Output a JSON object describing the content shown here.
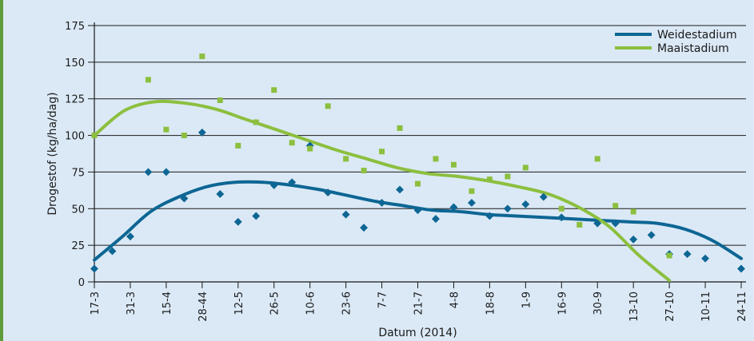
{
  "chart_data": {
    "type": "scatter",
    "xlabel": "Datum (2014)",
    "ylabel": "Drogestof (kg/ha/dag)",
    "ylim": [
      0,
      175
    ],
    "yticks": [
      0,
      25,
      50,
      75,
      100,
      125,
      150,
      175
    ],
    "grid": true,
    "legend_position": "top-right",
    "categories": [
      "17-3",
      "31-3",
      "15-4",
      "28-44",
      "12-5",
      "26-5",
      "10-6",
      "23-6",
      "7-7",
      "21-7",
      "4-8",
      "18-8",
      "1-9",
      "16-9",
      "30-9",
      "13-10",
      "27-10",
      "10-11",
      "24-11"
    ],
    "series": [
      {
        "name": "Weidestadium",
        "color": "#0d6694",
        "marker": "diamond",
        "x": [
          0,
          0.5,
          1,
          1.5,
          2,
          2.5,
          3,
          3.5,
          4,
          4.5,
          5,
          5.5,
          6,
          6.5,
          7,
          7.5,
          8,
          8.5,
          9,
          9.5,
          10,
          10.5,
          11,
          11.5,
          12,
          12.5,
          13,
          13.5,
          14,
          14.5,
          15,
          15.5,
          16,
          16.5,
          17,
          17.5,
          18
        ],
        "values": [
          9,
          21,
          31,
          75,
          75,
          57,
          102,
          60,
          41,
          45,
          66,
          68,
          93,
          61,
          46,
          37,
          54,
          63,
          49,
          43,
          51,
          54,
          45,
          50,
          53,
          58,
          44,
          null,
          40,
          40,
          29,
          32,
          19,
          19,
          16,
          null,
          9
        ],
        "trend": [
          15,
          31,
          48,
          58,
          65,
          68,
          68,
          66,
          63,
          59,
          55,
          52,
          49,
          48,
          46,
          45,
          44,
          43,
          42,
          41,
          40,
          36,
          28,
          16
        ]
      },
      {
        "name": "Maaistadium",
        "color": "#8cbf3f",
        "marker": "square",
        "x": [
          0,
          0.5,
          1,
          1.5,
          2,
          2.5,
          3,
          3.5,
          4,
          4.5,
          5,
          5.5,
          6,
          6.5,
          7,
          7.5,
          8,
          8.5,
          9,
          9.5,
          10,
          10.5,
          11,
          11.5,
          12,
          12.5,
          13,
          13.5,
          14,
          14.5,
          15,
          15.5,
          16
        ],
        "values": [
          100,
          null,
          null,
          138,
          104,
          100,
          154,
          124,
          93,
          109,
          131,
          95,
          91,
          120,
          84,
          76,
          89,
          105,
          67,
          84,
          80,
          62,
          70,
          72,
          78,
          null,
          50,
          39,
          84,
          52,
          48,
          null,
          18
        ],
        "trend": [
          100,
          117,
          123,
          122,
          118,
          111,
          104,
          97,
          90,
          84,
          78,
          74,
          72,
          69,
          65,
          60,
          51,
          38,
          18,
          1
        ]
      }
    ]
  }
}
